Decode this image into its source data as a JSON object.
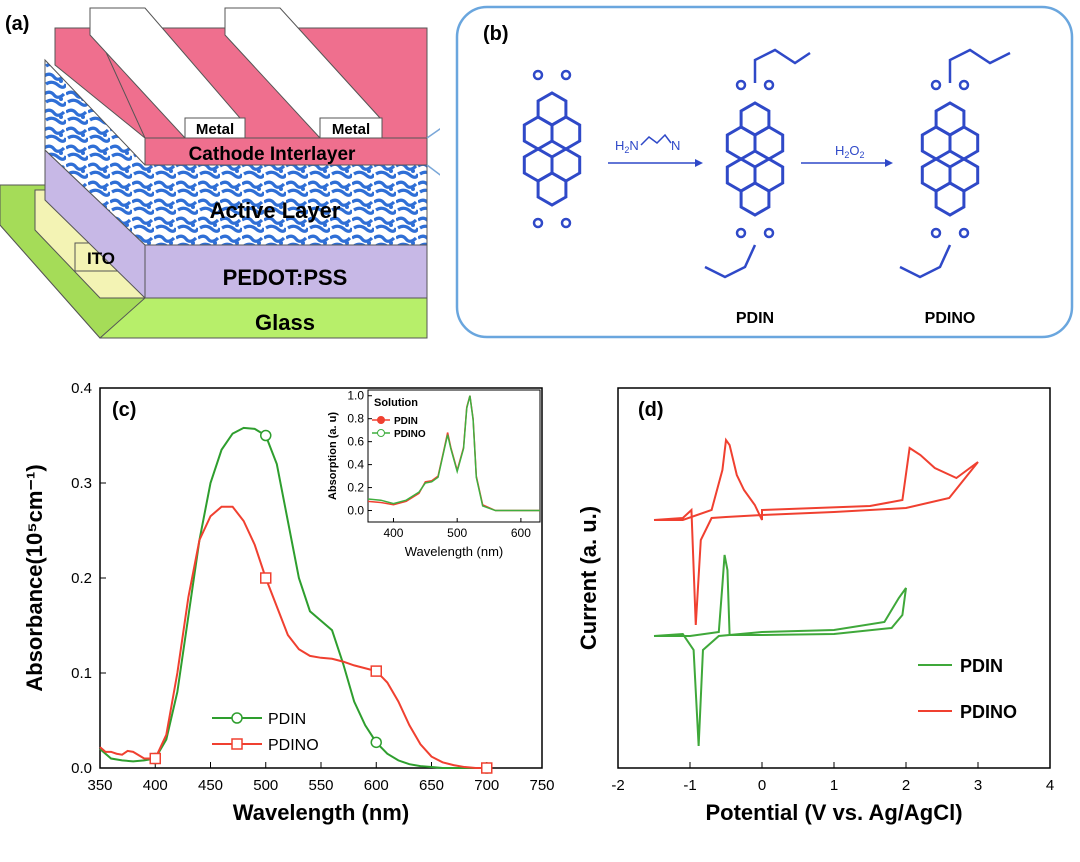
{
  "panel_a": {
    "tag": "(a)",
    "metal_left": "Metal",
    "metal_right": "Metal",
    "cathode": "Cathode Interlayer",
    "active": "Active Layer",
    "ito": "ITO",
    "pedot": "PEDOT:PSS",
    "glass": "Glass",
    "colors": {
      "cathode": "#ef6f8e",
      "pedot": "#c7b8e6",
      "glass": "#b7ef6a",
      "ito": "#f3f3b4",
      "active": "#2f6fd6"
    }
  },
  "panel_b": {
    "tag": "(b)",
    "reagent1": "H2N⌢⌢N",
    "reagent2": "H2O2",
    "mol1_label": "PDIN",
    "mol2_label": "PDINO",
    "color": "#2f49c8"
  },
  "chart_data": [
    {
      "id": "c",
      "tag": "(c)",
      "type": "line",
      "xlabel": "Wavelength (nm)",
      "ylabel": "Absorbance(10⁵cm⁻¹)",
      "xlim": [
        350,
        750
      ],
      "ylim": [
        0.0,
        0.4
      ],
      "xticks": [
        350,
        400,
        450,
        500,
        550,
        600,
        650,
        700,
        750
      ],
      "yticks": [
        0.0,
        0.1,
        0.2,
        0.3,
        0.4
      ],
      "legend_position": "lower-left",
      "series": [
        {
          "name": "PDIN",
          "color": "#2e9e2e",
          "marker": "circle",
          "x": [
            350,
            360,
            370,
            380,
            390,
            400,
            410,
            420,
            430,
            440,
            450,
            460,
            470,
            480,
            490,
            500,
            510,
            520,
            530,
            540,
            550,
            560,
            570,
            580,
            590,
            600,
            610,
            620,
            630,
            640,
            650,
            660,
            670,
            680,
            690,
            700
          ],
          "y": [
            0.02,
            0.01,
            0.008,
            0.007,
            0.008,
            0.01,
            0.03,
            0.08,
            0.16,
            0.24,
            0.3,
            0.335,
            0.352,
            0.358,
            0.357,
            0.35,
            0.32,
            0.26,
            0.2,
            0.165,
            0.155,
            0.145,
            0.11,
            0.07,
            0.045,
            0.027,
            0.015,
            0.008,
            0.004,
            0.002,
            0.001,
            0.0,
            0.0,
            0.0,
            0.0,
            0.0
          ],
          "markers_x": [
            400,
            500,
            600,
            700
          ]
        },
        {
          "name": "PDINO",
          "color": "#f04030",
          "marker": "square",
          "x": [
            350,
            355,
            360,
            365,
            370,
            375,
            380,
            390,
            400,
            410,
            420,
            430,
            440,
            450,
            460,
            470,
            480,
            490,
            500,
            510,
            520,
            530,
            540,
            550,
            560,
            570,
            580,
            590,
            600,
            610,
            620,
            630,
            640,
            650,
            660,
            670,
            680,
            690,
            700
          ],
          "y": [
            0.022,
            0.017,
            0.017,
            0.015,
            0.014,
            0.018,
            0.017,
            0.01,
            0.01,
            0.035,
            0.1,
            0.18,
            0.24,
            0.265,
            0.275,
            0.275,
            0.26,
            0.235,
            0.2,
            0.17,
            0.14,
            0.125,
            0.118,
            0.116,
            0.115,
            0.112,
            0.108,
            0.105,
            0.102,
            0.09,
            0.07,
            0.045,
            0.025,
            0.012,
            0.006,
            0.003,
            0.001,
            0.0,
            0.0
          ],
          "markers_x": [
            400,
            500,
            600,
            700
          ]
        }
      ],
      "inset": {
        "type": "line",
        "legend_title": "Solution",
        "xlabel": "Wavelength (nm)",
        "ylabel": "Absorption (a. u)",
        "xlim": [
          360,
          630
        ],
        "ylim": [
          -0.1,
          1.05
        ],
        "xticks": [
          400,
          500,
          600
        ],
        "yticks": [
          0.0,
          0.2,
          0.4,
          0.6,
          0.8,
          1.0
        ],
        "series": [
          {
            "name": "PDIN",
            "color": "#f04030",
            "x": [
              360,
              380,
              400,
              420,
              440,
              450,
              460,
              470,
              480,
              485,
              490,
              500,
              510,
              515,
              520,
              525,
              530,
              540,
              560,
              600,
              630
            ],
            "y": [
              0.08,
              0.07,
              0.05,
              0.08,
              0.15,
              0.25,
              0.26,
              0.3,
              0.55,
              0.68,
              0.55,
              0.35,
              0.55,
              0.9,
              1.0,
              0.8,
              0.3,
              0.05,
              0.0,
              0.0,
              0.0
            ]
          },
          {
            "name": "PDINO",
            "color": "#3fae3f",
            "x": [
              360,
              380,
              400,
              420,
              440,
              450,
              460,
              470,
              480,
              485,
              490,
              500,
              510,
              515,
              520,
              525,
              530,
              540,
              560,
              600,
              630
            ],
            "y": [
              0.1,
              0.09,
              0.06,
              0.09,
              0.16,
              0.24,
              0.25,
              0.29,
              0.54,
              0.66,
              0.54,
              0.34,
              0.54,
              0.89,
              1.0,
              0.79,
              0.29,
              0.04,
              0.0,
              0.0,
              0.0
            ]
          }
        ]
      }
    },
    {
      "id": "d",
      "tag": "(d)",
      "type": "line",
      "xlabel": "Potential (V vs. Ag/AgCl)",
      "ylabel": "Current (a. u.)",
      "xlim": [
        -2,
        4
      ],
      "xticks": [
        -2,
        -1,
        0,
        1,
        2,
        3,
        4
      ],
      "legend_position": "lower-right",
      "series": [
        {
          "name": "PDIN",
          "color": "#3fa83a"
        },
        {
          "name": "PDINO",
          "color": "#f04030"
        }
      ]
    }
  ]
}
